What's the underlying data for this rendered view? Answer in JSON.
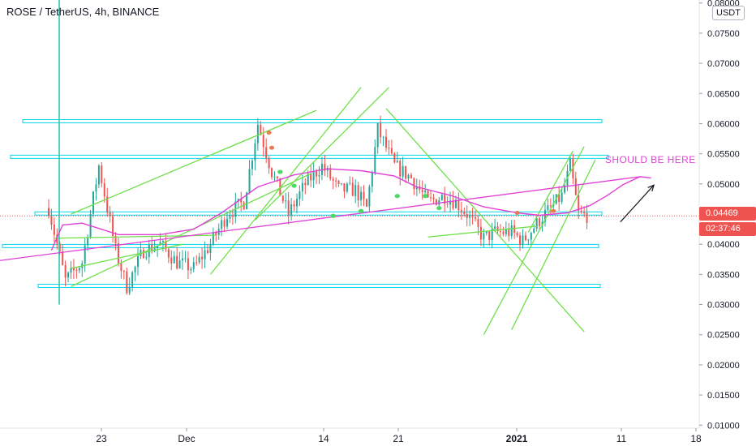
{
  "header": {
    "title": "ROSE / TetherUS, 4h, BINANCE",
    "currency": "USDT"
  },
  "price_badges": {
    "last_price": "0.04469",
    "countdown": "02:37:46"
  },
  "annotation": {
    "text": "SHOULD BE HERE"
  },
  "colors": {
    "up_candle": "#26a69a",
    "down_candle": "#ef5350",
    "level_lines": "#00d8e8",
    "trend_lines": "#6ee04a",
    "moving_average": "#e040d6",
    "price_line": "#f05050"
  },
  "chart_data": {
    "type": "candlestick",
    "x_tick_labels": [
      "23",
      "Dec",
      "14",
      "21",
      "2021",
      "11",
      "18"
    ],
    "y_tick_labels": [
      "0.08000",
      "0.07500",
      "0.07000",
      "0.06500",
      "0.06000",
      "0.05500",
      "0.05000",
      "0.04500",
      "0.04000",
      "0.03500",
      "0.03000",
      "0.02500",
      "0.02000",
      "0.01500",
      "0.01000"
    ],
    "ylim": [
      0.0095,
      0.0805
    ],
    "horizontal_levels": [
      0.0604,
      0.0545,
      0.0451,
      0.0397,
      0.0331
    ],
    "ma_points": [
      [
        1,
        0.039
      ],
      [
        5,
        0.0432
      ],
      [
        12,
        0.0435
      ],
      [
        25,
        0.0416
      ],
      [
        40,
        0.0416
      ],
      [
        52,
        0.0425
      ],
      [
        62,
        0.0452
      ],
      [
        75,
        0.0495
      ],
      [
        88,
        0.0515
      ],
      [
        100,
        0.0525
      ],
      [
        112,
        0.0522
      ],
      [
        124,
        0.0513
      ],
      [
        132,
        0.0495
      ],
      [
        144,
        0.0481
      ],
      [
        156,
        0.0462
      ],
      [
        168,
        0.0452
      ],
      [
        176,
        0.0448
      ],
      [
        186,
        0.0452
      ],
      [
        194,
        0.0464
      ],
      [
        200,
        0.048
      ],
      [
        206,
        0.0499
      ],
      [
        212,
        0.0512
      ],
      [
        216,
        0.051
      ]
    ],
    "projection_line": [
      [
        0,
        0.0382
      ],
      [
        212,
        0.0512
      ]
    ],
    "candle_path": [
      [
        0,
        0.046
      ],
      [
        6,
        0.034
      ],
      [
        12,
        0.037
      ],
      [
        18,
        0.053
      ],
      [
        24,
        0.039
      ],
      [
        28,
        0.033
      ],
      [
        34,
        0.039
      ],
      [
        40,
        0.04
      ],
      [
        46,
        0.037
      ],
      [
        52,
        0.036
      ],
      [
        58,
        0.04
      ],
      [
        64,
        0.045
      ],
      [
        70,
        0.047
      ],
      [
        75,
        0.06
      ],
      [
        80,
        0.052
      ],
      [
        86,
        0.045
      ],
      [
        92,
        0.05
      ],
      [
        98,
        0.053
      ],
      [
        104,
        0.049
      ],
      [
        110,
        0.049
      ],
      [
        114,
        0.046
      ],
      [
        118,
        0.059
      ],
      [
        124,
        0.053
      ],
      [
        130,
        0.051
      ],
      [
        136,
        0.047
      ],
      [
        142,
        0.048
      ],
      [
        146,
        0.047
      ],
      [
        150,
        0.045
      ],
      [
        156,
        0.041
      ],
      [
        160,
        0.042
      ],
      [
        166,
        0.042
      ],
      [
        170,
        0.0405
      ],
      [
        176,
        0.044
      ],
      [
        180,
        0.046
      ],
      [
        184,
        0.048
      ],
      [
        187,
        0.053
      ],
      [
        190,
        0.045
      ],
      [
        194,
        0.0447
      ]
    ],
    "candle_count": 194,
    "trend_lines": [
      [
        [
          2,
          0.041
        ],
        [
          60,
          0.0415
        ]
      ],
      [
        [
          8,
          0.033
        ],
        [
          94,
          0.0517
        ]
      ],
      [
        [
          8,
          0.045
        ],
        [
          96,
          0.0622
        ]
      ],
      [
        [
          8,
          0.036
        ],
        [
          48,
          0.04
        ]
      ],
      [
        [
          58,
          0.035
        ],
        [
          112,
          0.066
        ]
      ],
      [
        [
          74,
          0.044
        ],
        [
          122,
          0.066
        ]
      ],
      [
        [
          121,
          0.0625
        ],
        [
          192,
          0.0255
        ]
      ],
      [
        [
          136,
          0.0412
        ],
        [
          175,
          0.043
        ]
      ],
      [
        [
          172,
          0.042
        ],
        [
          188,
          0.0555
        ]
      ],
      [
        [
          156,
          0.025
        ],
        [
          192,
          0.0562
        ]
      ],
      [
        [
          166,
          0.0258
        ],
        [
          196,
          0.054
        ]
      ]
    ],
    "red_marker_points": [
      [
        79,
        0.0585
      ],
      [
        80,
        0.056
      ],
      [
        168,
        0.0452
      ],
      [
        181,
        0.0455
      ]
    ],
    "green_marker_points": [
      [
        83,
        0.052
      ],
      [
        88,
        0.0497
      ],
      [
        102,
        0.0447
      ],
      [
        112,
        0.0455
      ],
      [
        125,
        0.048
      ],
      [
        135,
        0.048
      ],
      [
        140,
        0.046
      ]
    ],
    "arrow": [
      [
        205,
        0.0437
      ],
      [
        217,
        0.0498
      ]
    ]
  }
}
